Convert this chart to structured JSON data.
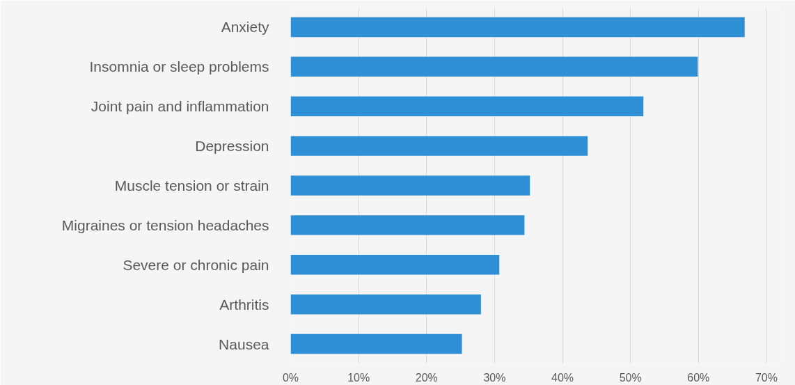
{
  "chart_data": {
    "type": "bar",
    "orientation": "horizontal",
    "categories": [
      "Anxiety",
      "Insomnia or sleep problems",
      "Joint pain and inflammation",
      "Depression",
      "Muscle tension or strain",
      "Migraines or tension headaches",
      "Severe or chronic pain",
      "Arthritis",
      "Nausea"
    ],
    "values": [
      66.8,
      59.9,
      51.9,
      43.7,
      35.2,
      34.4,
      30.7,
      28.0,
      25.2
    ],
    "color": "#2e8fd4",
    "xlim": [
      0,
      72
    ],
    "xticks": [
      {
        "value": 0,
        "label": "0%"
      },
      {
        "value": 10,
        "label": "10%"
      },
      {
        "value": 20,
        "label": "20%"
      },
      {
        "value": 30,
        "label": "30%"
      },
      {
        "value": 40,
        "label": "40%"
      },
      {
        "value": 50,
        "label": "50%"
      },
      {
        "value": 60,
        "label": "60%"
      },
      {
        "value": 70,
        "label": "70%"
      }
    ],
    "grid": "x"
  }
}
